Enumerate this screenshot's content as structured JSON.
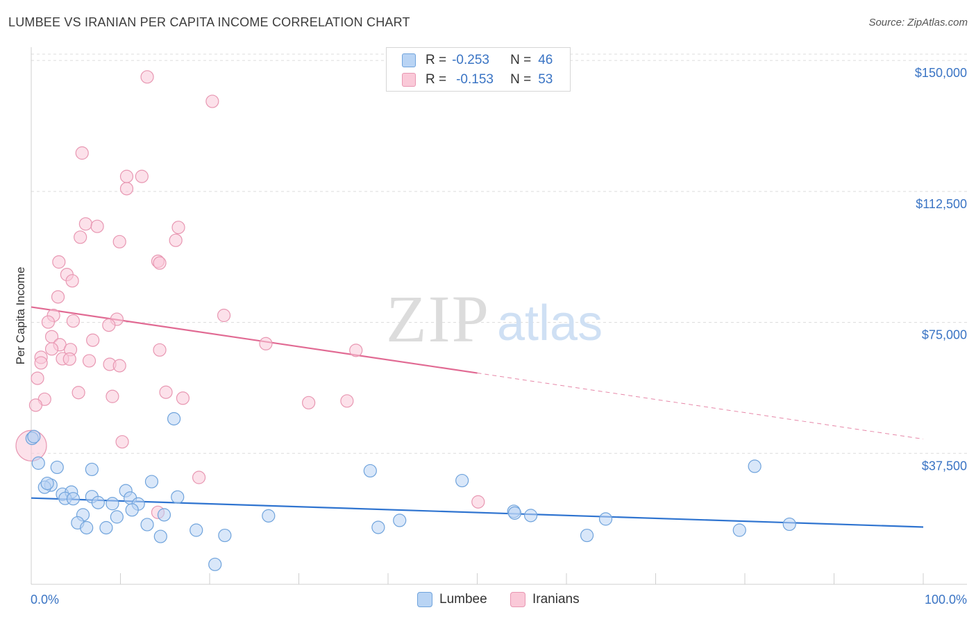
{
  "title": "LUMBEE VS IRANIAN PER CAPITA INCOME CORRELATION CHART",
  "source": "Source: ZipAtlas.com",
  "watermark": {
    "zip": "ZIP",
    "atlas": "atlas"
  },
  "legend": {
    "r_label": "R =",
    "n_label": "N =",
    "rows": [
      {
        "name": "Lumbee",
        "r": "-0.253",
        "n": "46"
      },
      {
        "name": "Iranians",
        "r": "-0.153",
        "n": "53"
      }
    ]
  },
  "colors": {
    "lumbee_fill": "#b9d4f4",
    "lumbee_stroke": "#6fa3dc",
    "lumbee_line": "#2f74d0",
    "iranian_fill": "#fac9d8",
    "iranian_stroke": "#e897b2",
    "iranian_line": "#e16a93",
    "axis_text": "#3a74c4",
    "grid": "#dcdcdc"
  },
  "chart_data": {
    "type": "scatter",
    "title": "LUMBEE VS IRANIAN PER CAPITA INCOME CORRELATION CHART",
    "xlabel": "",
    "ylabel": "Per Capita Income",
    "xlim": [
      0,
      100
    ],
    "ylim": [
      0,
      155000
    ],
    "x_tick_labels": [
      "0.0%",
      "100.0%"
    ],
    "y_ticks": [
      37500,
      75000,
      112500,
      150000
    ],
    "y_tick_labels": [
      "$37,500",
      "$75,000",
      "$112,500",
      "$150,000"
    ],
    "series": [
      {
        "name": "Lumbee",
        "trend": {
          "x0": 0,
          "y0": 24700,
          "x1": 100,
          "y1": 16400,
          "solid_to": 100
        },
        "points": [
          [
            0.1,
            41800
          ],
          [
            0.8,
            34700
          ],
          [
            2.9,
            33500
          ],
          [
            2.2,
            28400
          ],
          [
            1.5,
            27800
          ],
          [
            1.8,
            28900
          ],
          [
            3.5,
            25800
          ],
          [
            4.5,
            26400
          ],
          [
            3.8,
            24600
          ],
          [
            4.7,
            24500
          ],
          [
            6.8,
            32900
          ],
          [
            10.6,
            26800
          ],
          [
            6.8,
            25100
          ],
          [
            9.1,
            23100
          ],
          [
            11.1,
            24700
          ],
          [
            12.0,
            23000
          ],
          [
            11.3,
            21300
          ],
          [
            7.5,
            23400
          ],
          [
            9.6,
            19300
          ],
          [
            5.8,
            19900
          ],
          [
            5.2,
            17600
          ],
          [
            6.2,
            16200
          ],
          [
            8.4,
            16200
          ],
          [
            13.0,
            17100
          ],
          [
            13.5,
            29400
          ],
          [
            14.9,
            19900
          ],
          [
            16.4,
            25000
          ],
          [
            16.0,
            47400
          ],
          [
            14.5,
            13700
          ],
          [
            18.5,
            15500
          ],
          [
            21.7,
            14000
          ],
          [
            26.6,
            19600
          ],
          [
            20.6,
            5700
          ],
          [
            38.0,
            32500
          ],
          [
            38.9,
            16300
          ],
          [
            41.3,
            18300
          ],
          [
            48.3,
            29700
          ],
          [
            54.1,
            20900
          ],
          [
            54.2,
            20400
          ],
          [
            56.0,
            19700
          ],
          [
            62.3,
            14000
          ],
          [
            64.4,
            18700
          ],
          [
            79.4,
            15500
          ],
          [
            81.1,
            33800
          ],
          [
            85.0,
            17200
          ],
          [
            0.3,
            42300
          ]
        ]
      },
      {
        "name": "Iranians",
        "trend": {
          "x0": 0,
          "y0": 79400,
          "x1": 100,
          "y1": 41600,
          "solid_to": 50
        },
        "points": [
          [
            13.0,
            145300
          ],
          [
            20.3,
            138300
          ],
          [
            5.7,
            123500
          ],
          [
            12.4,
            116800
          ],
          [
            10.7,
            113300
          ],
          [
            6.1,
            103200
          ],
          [
            7.4,
            102500
          ],
          [
            16.5,
            102200
          ],
          [
            5.5,
            99400
          ],
          [
            9.9,
            98100
          ],
          [
            16.2,
            98500
          ],
          [
            3.1,
            92300
          ],
          [
            14.2,
            92500
          ],
          [
            14.4,
            92000
          ],
          [
            4.0,
            88700
          ],
          [
            4.6,
            86900
          ],
          [
            3.0,
            82300
          ],
          [
            2.5,
            77000
          ],
          [
            21.6,
            77000
          ],
          [
            1.9,
            75100
          ],
          [
            4.7,
            75400
          ],
          [
            9.6,
            75900
          ],
          [
            8.7,
            74200
          ],
          [
            2.3,
            70900
          ],
          [
            3.2,
            68600
          ],
          [
            6.9,
            69900
          ],
          [
            2.3,
            67400
          ],
          [
            4.4,
            67200
          ],
          [
            1.1,
            65000
          ],
          [
            3.5,
            64600
          ],
          [
            4.3,
            64500
          ],
          [
            6.5,
            64000
          ],
          [
            1.1,
            63400
          ],
          [
            8.8,
            63000
          ],
          [
            9.9,
            62600
          ],
          [
            14.4,
            67100
          ],
          [
            26.3,
            68900
          ],
          [
            36.4,
            67000
          ],
          [
            0.7,
            59000
          ],
          [
            5.3,
            54900
          ],
          [
            9.1,
            53800
          ],
          [
            15.1,
            55000
          ],
          [
            17.0,
            53300
          ],
          [
            1.5,
            53000
          ],
          [
            0.5,
            51300
          ],
          [
            31.1,
            52000
          ],
          [
            35.4,
            52500
          ],
          [
            10.2,
            40800
          ],
          [
            0.0,
            39700
          ],
          [
            18.8,
            30600
          ],
          [
            14.2,
            20600
          ],
          [
            50.1,
            23600
          ],
          [
            10.7,
            116800
          ]
        ]
      }
    ]
  }
}
